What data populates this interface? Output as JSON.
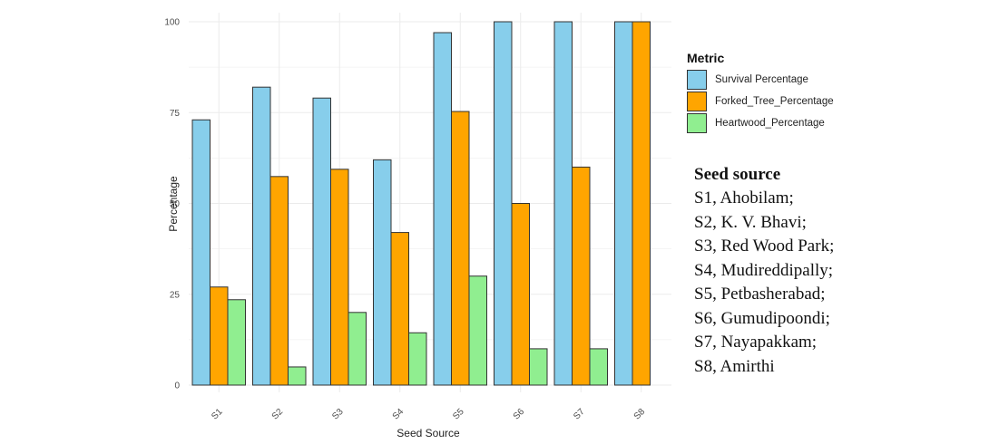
{
  "chart_data": {
    "type": "bar",
    "title": "",
    "xlabel": "Seed Source",
    "ylabel": "Percentage",
    "ylim": [
      0,
      100
    ],
    "yticks": [
      0,
      25,
      50,
      75,
      100
    ],
    "grid": true,
    "legend_position": "right",
    "legend_title": "Metric",
    "categories": [
      "S1",
      "S2",
      "S3",
      "S4",
      "S5",
      "S6",
      "S7",
      "S8"
    ],
    "series": [
      {
        "name": "Survival Percentage",
        "color": "#87CEEB",
        "values": [
          73,
          82,
          79,
          62,
          97,
          100,
          100,
          100
        ]
      },
      {
        "name": "Forked_Tree_Percentage",
        "color": "#FFA500",
        "values": [
          27,
          57.4,
          59.4,
          42,
          75.3,
          50,
          60,
          100
        ]
      },
      {
        "name": "Heartwood_Percentage",
        "color": "#90EE90",
        "values": [
          23.5,
          5,
          20,
          14.4,
          30,
          10,
          10,
          0
        ]
      }
    ]
  },
  "seed_source_key": {
    "title": "Seed source",
    "items": [
      "S1, Ahobilam;",
      "S2, K. V. Bhavi;",
      "S3, Red Wood Park;",
      "S4, Mudireddipally;",
      "S5, Petbasherabad;",
      "S6, Gumudipoondi;",
      "S7, Nayapakkam;",
      "S8, Amirthi"
    ]
  }
}
